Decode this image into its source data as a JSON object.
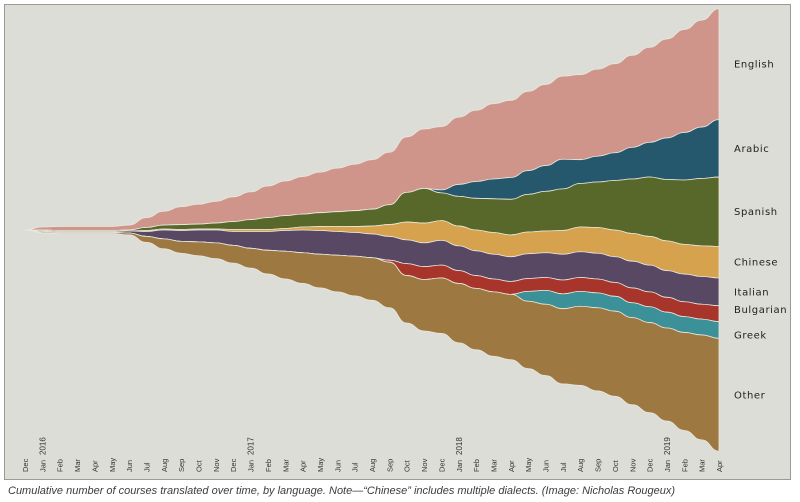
{
  "caption": "Cumulative number of courses translated over time, by language. Note—“Chinese” includes multiple dialects. (Image: Nicholas Rougeux)",
  "chart_data": {
    "type": "area",
    "variant": "streamgraph",
    "x_ticks": [
      {
        "label": "Dec",
        "year": "",
        "i": 0
      },
      {
        "label": "Jan",
        "year": "2016",
        "i": 1
      },
      {
        "label": "Feb",
        "year": "",
        "i": 2
      },
      {
        "label": "Mar",
        "year": "",
        "i": 3
      },
      {
        "label": "Apr",
        "year": "",
        "i": 4
      },
      {
        "label": "May",
        "year": "",
        "i": 5
      },
      {
        "label": "Jun",
        "year": "",
        "i": 6
      },
      {
        "label": "Jul",
        "year": "",
        "i": 7
      },
      {
        "label": "Aug",
        "year": "",
        "i": 8
      },
      {
        "label": "Sep",
        "year": "",
        "i": 9
      },
      {
        "label": "Oct",
        "year": "",
        "i": 10
      },
      {
        "label": "Nov",
        "year": "",
        "i": 11
      },
      {
        "label": "Dec",
        "year": "",
        "i": 12
      },
      {
        "label": "Jan",
        "year": "2017",
        "i": 13
      },
      {
        "label": "Feb",
        "year": "",
        "i": 14
      },
      {
        "label": "Mar",
        "year": "",
        "i": 15
      },
      {
        "label": "Apr",
        "year": "",
        "i": 16
      },
      {
        "label": "May",
        "year": "",
        "i": 17
      },
      {
        "label": "Jun",
        "year": "",
        "i": 18
      },
      {
        "label": "Jul",
        "year": "",
        "i": 19
      },
      {
        "label": "Aug",
        "year": "",
        "i": 20
      },
      {
        "label": "Sep",
        "year": "",
        "i": 21
      },
      {
        "label": "Oct",
        "year": "",
        "i": 22
      },
      {
        "label": "Nov",
        "year": "",
        "i": 23
      },
      {
        "label": "Dec",
        "year": "",
        "i": 24
      },
      {
        "label": "Jan",
        "year": "2018",
        "i": 25
      },
      {
        "label": "Feb",
        "year": "",
        "i": 26
      },
      {
        "label": "Mar",
        "year": "",
        "i": 27
      },
      {
        "label": "Apr",
        "year": "",
        "i": 28
      },
      {
        "label": "May",
        "year": "",
        "i": 29
      },
      {
        "label": "Jun",
        "year": "",
        "i": 30
      },
      {
        "label": "Jul",
        "year": "",
        "i": 31
      },
      {
        "label": "Aug",
        "year": "",
        "i": 32
      },
      {
        "label": "Sep",
        "year": "",
        "i": 33
      },
      {
        "label": "Oct",
        "year": "",
        "i": 34
      },
      {
        "label": "Nov",
        "year": "",
        "i": 35
      },
      {
        "label": "Dec",
        "year": "",
        "i": 36
      },
      {
        "label": "Jan",
        "year": "2019",
        "i": 37
      },
      {
        "label": "Feb",
        "year": "",
        "i": 38
      },
      {
        "label": "Mar",
        "year": "",
        "i": 39
      },
      {
        "label": "Apr",
        "year": "",
        "i": 40
      }
    ],
    "series": [
      {
        "name": "English",
        "color": "#cf948a",
        "values": [
          0,
          3,
          4,
          4,
          4,
          4,
          5,
          10,
          14,
          18,
          20,
          22,
          25,
          28,
          32,
          35,
          38,
          41,
          44,
          47,
          50,
          53,
          56,
          60,
          64,
          68,
          72,
          76,
          78,
          80,
          82,
          84,
          86,
          88,
          90,
          93,
          96,
          100,
          104,
          108,
          112
        ]
      },
      {
        "name": "Arabic",
        "color": "#25586d",
        "values": [
          0,
          0,
          0,
          0,
          0,
          0,
          0,
          0,
          0,
          0,
          0,
          0,
          0,
          0,
          0,
          0,
          0,
          0,
          0,
          0,
          0,
          0,
          0,
          0,
          3,
          12,
          17,
          20,
          22,
          24,
          26,
          30,
          24,
          26,
          28,
          32,
          35,
          42,
          48,
          52,
          58
        ]
      },
      {
        "name": "Spanish",
        "color": "#57682a",
        "values": [
          0,
          1,
          1,
          1,
          1,
          1,
          1,
          3,
          4,
          5,
          5,
          6,
          8,
          10,
          12,
          13,
          13,
          14,
          15,
          16,
          17,
          20,
          30,
          35,
          28,
          30,
          32,
          34,
          36,
          38,
          40,
          42,
          44,
          46,
          50,
          55,
          60,
          62,
          65,
          68,
          70
        ]
      },
      {
        "name": "Chinese",
        "color": "#d6a24d",
        "values": [
          0,
          0,
          0,
          0,
          0,
          0,
          0,
          1,
          1,
          1,
          1,
          1,
          2,
          2,
          2,
          2,
          3,
          4,
          5,
          6,
          8,
          12,
          18,
          20,
          20,
          20,
          21,
          22,
          22,
          22,
          22,
          24,
          25,
          26,
          27,
          28,
          29,
          30,
          30,
          31,
          32
        ]
      },
      {
        "name": "Italian",
        "color": "#584864",
        "values": [
          0,
          1,
          1,
          1,
          1,
          1,
          2,
          5,
          9,
          11,
          12,
          13,
          14,
          17,
          19,
          21,
          23,
          24,
          24,
          24,
          24,
          24,
          24,
          24,
          25,
          25,
          25,
          25,
          25,
          25,
          25,
          26,
          26,
          26,
          26,
          27,
          27,
          27,
          28,
          28,
          28
        ]
      },
      {
        "name": "Bulgarian",
        "color": "#a8352b",
        "values": [
          0,
          0,
          0,
          0,
          0,
          0,
          0,
          0,
          0,
          0,
          0,
          0,
          0,
          0,
          0,
          0,
          0,
          0,
          0,
          0,
          0,
          2,
          12,
          13,
          13,
          13,
          13,
          13,
          13,
          13,
          13,
          14,
          14,
          14,
          14,
          15,
          15,
          15,
          15,
          15,
          16
        ]
      },
      {
        "name": "Greek",
        "color": "#3b9197",
        "values": [
          0,
          0,
          0,
          0,
          0,
          0,
          0,
          0,
          0,
          0,
          0,
          0,
          0,
          0,
          0,
          0,
          0,
          0,
          0,
          0,
          0,
          0,
          0,
          0,
          0,
          0,
          0,
          0,
          0,
          10,
          14,
          15,
          15,
          15,
          15,
          15,
          16,
          16,
          16,
          16,
          17
        ]
      },
      {
        "name": "Other",
        "color": "#9e7841",
        "values": [
          0,
          1,
          1,
          1,
          1,
          1,
          2,
          6,
          10,
          12,
          14,
          16,
          18,
          20,
          24,
          28,
          31,
          34,
          37,
          40,
          43,
          46,
          48,
          52,
          56,
          60,
          62,
          65,
          66,
          68,
          72,
          76,
          80,
          84,
          86,
          88,
          91,
          94,
          99,
          106,
          114
        ]
      }
    ],
    "labels_placement": "right of the final data column",
    "grid": false,
    "background": "#ddddd7"
  }
}
